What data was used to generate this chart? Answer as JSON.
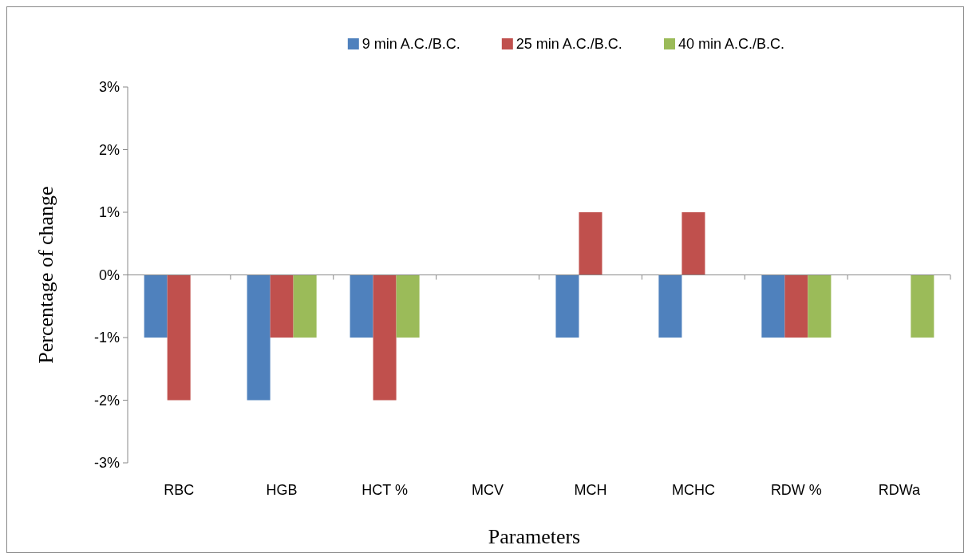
{
  "chart_data": {
    "type": "bar",
    "xlabel": "Parameters",
    "ylabel": "Percentage of change",
    "categories": [
      "RBC",
      "HGB",
      "HCT %",
      "MCV",
      "MCH",
      "MCHC",
      "RDW %",
      "RDWa"
    ],
    "series": [
      {
        "name": "9 min A.C./B.C.",
        "color": "#4f81bd",
        "values": [
          -1,
          -2,
          -1,
          0,
          -1,
          -1,
          -1,
          0
        ]
      },
      {
        "name": "25 min A.C./B.C.",
        "color": "#c0504d",
        "values": [
          -2,
          -1,
          -2,
          0,
          1,
          1,
          -1,
          0
        ]
      },
      {
        "name": "40 min A.C./B.C.",
        "color": "#9bbb59",
        "values": [
          0,
          -1,
          -1,
          0,
          0,
          0,
          -1,
          -1
        ]
      }
    ],
    "ylim": [
      -3,
      3
    ],
    "yticks": [
      {
        "value": -3,
        "label": "-3%"
      },
      {
        "value": -2,
        "label": "-2%"
      },
      {
        "value": -1,
        "label": "-1%"
      },
      {
        "value": 0,
        "label": "0%"
      },
      {
        "value": 1,
        "label": "1%"
      },
      {
        "value": 2,
        "label": "2%"
      },
      {
        "value": 3,
        "label": "3%"
      }
    ],
    "legend": "top"
  }
}
